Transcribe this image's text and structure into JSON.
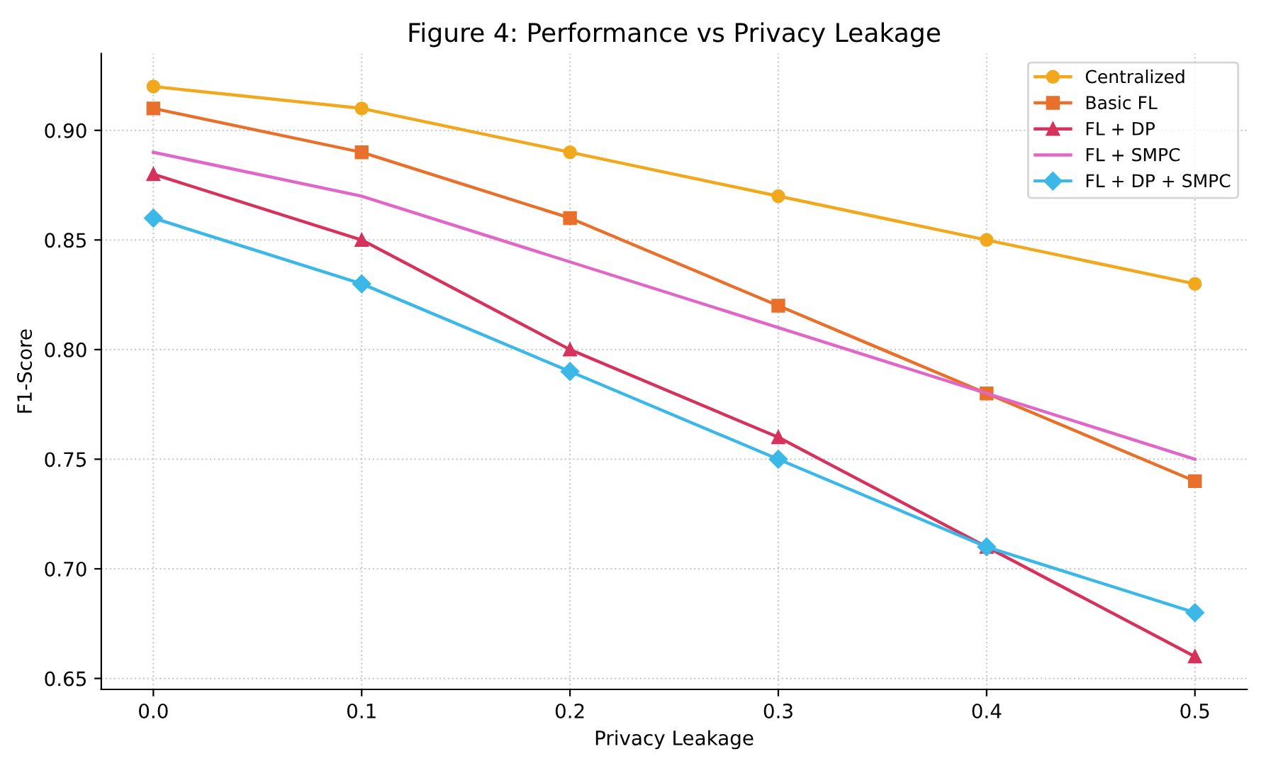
{
  "chart_data": {
    "type": "line",
    "title": "Figure 4: Performance vs Privacy Leakage",
    "xlabel": "Privacy Leakage",
    "ylabel": "F1-Score",
    "x": [
      0.0,
      0.1,
      0.2,
      0.3,
      0.4,
      0.5
    ],
    "series": [
      {
        "name": "Centralized",
        "color": "#f2a81d",
        "marker": "circle",
        "values": [
          0.92,
          0.91,
          0.89,
          0.87,
          0.85,
          0.83
        ]
      },
      {
        "name": "Basic FL",
        "color": "#e8702a",
        "marker": "square",
        "values": [
          0.91,
          0.89,
          0.86,
          0.82,
          0.78,
          0.74
        ]
      },
      {
        "name": "FL + DP",
        "color": "#d6335c",
        "marker": "triangle",
        "values": [
          0.88,
          0.85,
          0.8,
          0.76,
          0.71,
          0.66
        ]
      },
      {
        "name": "FL + SMPC",
        "color": "#e066c8",
        "marker": "none",
        "values": [
          0.89,
          0.87,
          0.84,
          0.81,
          0.78,
          0.75
        ]
      },
      {
        "name": "FL + DP + SMPC",
        "color": "#3bb8e8",
        "marker": "diamond",
        "values": [
          0.86,
          0.83,
          0.79,
          0.75,
          0.71,
          0.68
        ]
      }
    ],
    "xlim": [
      -0.025,
      0.525
    ],
    "ylim": [
      0.645,
      0.935
    ],
    "xticks": [
      {
        "value": 0.0,
        "label": "0.0"
      },
      0.1,
      0.2,
      0.3,
      0.4,
      0.5
    ],
    "yticks": [
      {
        "value": 0.65,
        "label": "0.65"
      },
      {
        "value": 0.7,
        "label": "0.70"
      },
      0.75,
      {
        "value": 0.8,
        "label": "0.80"
      },
      0.85,
      {
        "value": 0.9,
        "label": "0.90"
      }
    ],
    "grid": true,
    "legend": "top right",
    "line_style": "solid"
  }
}
